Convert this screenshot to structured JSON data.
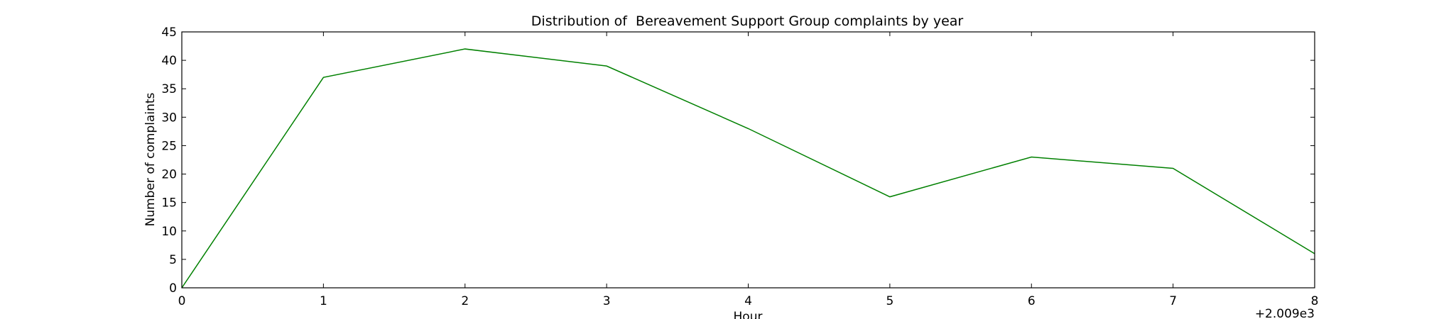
{
  "chart_data": {
    "type": "line",
    "title": "Distribution of  Bereavement Support Group complaints by year",
    "xlabel": "Hour",
    "ylabel": "Number of complaints",
    "offset_label": "+2.009e3",
    "x": [
      2009,
      2010,
      2011,
      2012,
      2013,
      2014,
      2015,
      2016,
      2017
    ],
    "xlim": [
      2009,
      2017
    ],
    "ylim": [
      0,
      45
    ],
    "x_ticks": [
      0,
      1,
      2,
      3,
      4,
      5,
      6,
      7,
      8
    ],
    "y_ticks": [
      0,
      5,
      10,
      15,
      20,
      25,
      30,
      35,
      40,
      45
    ],
    "series": [
      {
        "values": [
          0,
          37,
          42,
          39,
          28,
          16,
          23,
          21,
          6
        ],
        "color": "#008000"
      }
    ],
    "grid": false,
    "legend": "none"
  }
}
